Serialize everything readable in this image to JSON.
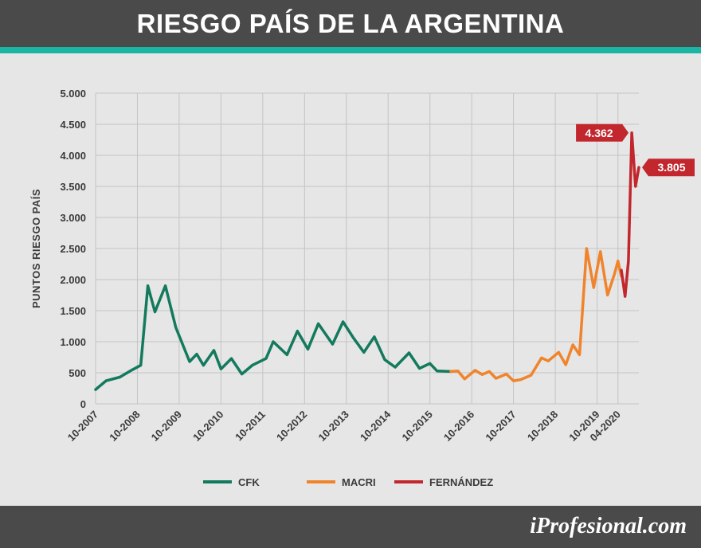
{
  "header": {
    "title": "RIESGO PAÍS DE LA ARGENTINA"
  },
  "footer": {
    "brand": "iProfesional.com"
  },
  "colors": {
    "header_bg": "#4a4a4a",
    "accent": "#1bb5a4",
    "cfk": "#137a5e",
    "macri": "#f0842c",
    "fernandez": "#c1272d",
    "grid": "#c4c4c4"
  },
  "chart_data": {
    "type": "line",
    "title": "",
    "ylabel": "PUNTOS RIESGO PAÍS",
    "xlabel": "",
    "ylim": [
      0,
      5000
    ],
    "yticks": [
      0,
      500,
      1000,
      1500,
      2000,
      2500,
      3000,
      3500,
      4000,
      4500,
      5000
    ],
    "ytick_labels": [
      "0",
      "500",
      "1.000",
      "1.500",
      "2.000",
      "2.500",
      "3.000",
      "3.500",
      "4.000",
      "4.500",
      "5.000"
    ],
    "xlim": [
      2007.75,
      2020.75
    ],
    "xticks": [
      2007.75,
      2008.75,
      2009.75,
      2010.75,
      2011.75,
      2012.75,
      2013.75,
      2014.75,
      2015.75,
      2016.75,
      2017.75,
      2018.75,
      2019.75,
      2020.25
    ],
    "xtick_labels": [
      "10-2007",
      "10-2008",
      "10-2009",
      "10-2010",
      "10-2011",
      "10-2012",
      "10-2013",
      "10-2014",
      "10-2015",
      "10-2016",
      "10-2017",
      "10-2018",
      "10-2019",
      "04-2020"
    ],
    "grid": true,
    "legend_position": "bottom-center",
    "series": [
      {
        "name": "CFK",
        "color": "#137a5e",
        "x": [
          2007.75,
          2008.0,
          2008.33,
          2008.58,
          2008.83,
          2009.0,
          2009.17,
          2009.42,
          2009.67,
          2010.0,
          2010.17,
          2010.33,
          2010.58,
          2010.75,
          2011.0,
          2011.25,
          2011.5,
          2011.83,
          2012.0,
          2012.33,
          2012.58,
          2012.83,
          2013.08,
          2013.42,
          2013.67,
          2013.92,
          2014.17,
          2014.42,
          2014.67,
          2014.92,
          2015.25,
          2015.5,
          2015.75,
          2015.92,
          2016.25
        ],
        "y": [
          230,
          370,
          430,
          530,
          620,
          1900,
          1480,
          1900,
          1230,
          680,
          800,
          620,
          860,
          560,
          730,
          480,
          620,
          730,
          1000,
          790,
          1170,
          880,
          1290,
          960,
          1320,
          1060,
          830,
          1080,
          710,
          590,
          820,
          570,
          650,
          530,
          520
        ]
      },
      {
        "name": "MACRI",
        "color": "#f0842c",
        "x": [
          2016.25,
          2016.42,
          2016.58,
          2016.83,
          2017.0,
          2017.17,
          2017.33,
          2017.58,
          2017.75,
          2017.92,
          2018.17,
          2018.42,
          2018.58,
          2018.83,
          2019.0,
          2019.17,
          2019.33,
          2019.5,
          2019.67,
          2019.83,
          2020.0,
          2020.17,
          2020.25,
          2020.33
        ],
        "y": [
          520,
          530,
          400,
          540,
          470,
          520,
          410,
          480,
          370,
          390,
          460,
          740,
          690,
          830,
          630,
          950,
          790,
          2500,
          1870,
          2450,
          1750,
          2100,
          2300,
          2050
        ]
      },
      {
        "name": "FERNÁNDEZ",
        "color": "#c1272d",
        "x": [
          2020.33,
          2020.42,
          2020.5,
          2020.58,
          2020.67,
          2020.75
        ],
        "y": [
          2150,
          1730,
          2300,
          4362,
          3500,
          3805
        ]
      }
    ],
    "annotations": [
      {
        "text": "4.362",
        "series": "FERNÁNDEZ",
        "x": 2020.58,
        "y": 4362,
        "side": "left"
      },
      {
        "text": "3.805",
        "series": "FERNÁNDEZ",
        "x": 2020.75,
        "y": 3805,
        "side": "right"
      }
    ]
  }
}
